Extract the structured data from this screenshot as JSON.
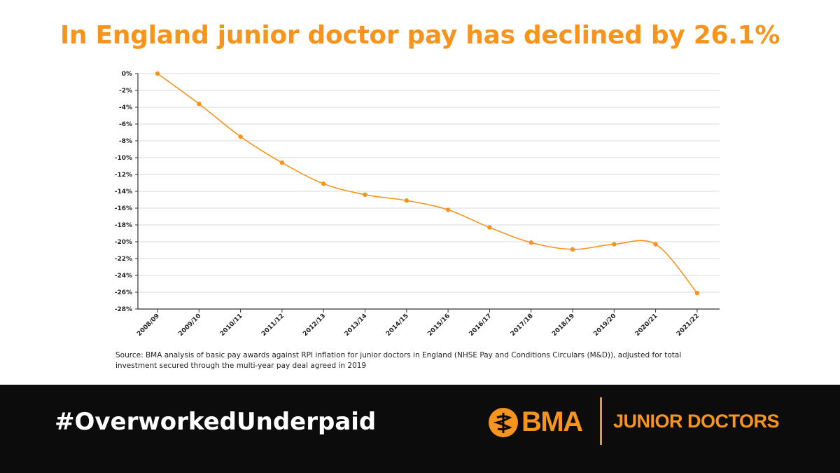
{
  "title": "In England junior doctor pay has declined by 26.1%",
  "source": "Source: BMA analysis of basic pay awards against RPI inflation for junior doctors in England (NHSE Pay and Conditions Circulars (M&D)), adjusted for total investment secured through the multi-year pay deal agreed in 2019",
  "footer": {
    "hashtag": "#OverworkedUnderpaid",
    "logo_text": "BMA",
    "section_label": "JUNIOR DOCTORS",
    "logo_icon": "bma-snake-staff-icon"
  },
  "colors": {
    "accent": "#f7941d",
    "footer_bg": "#0c0c0c",
    "grid": "#d9d9d9"
  },
  "chart_data": {
    "type": "line",
    "categories": [
      "2008/09",
      "2009/10",
      "2010/11",
      "2011/12",
      "2012/13",
      "2013/14",
      "2014/15",
      "2015/16",
      "2016/17",
      "2017/18",
      "2018/19",
      "2019/20",
      "2020/21",
      "2021/22"
    ],
    "values": [
      0,
      -3.6,
      -7.5,
      -10.6,
      -13.1,
      -14.4,
      -15.1,
      -16.2,
      -18.3,
      -20.1,
      -20.9,
      -20.3,
      -20.3,
      -26.1
    ],
    "y_ticks": [
      0,
      -2,
      -4,
      -6,
      -8,
      -10,
      -12,
      -14,
      -16,
      -18,
      -20,
      -22,
      -24,
      -26,
      -28
    ],
    "y_tick_suffix": "%",
    "ylim": [
      -28,
      0
    ],
    "grid": "horizontal",
    "legend": "none",
    "line_style": "smooth",
    "markers": true,
    "color": "#f7941d"
  }
}
